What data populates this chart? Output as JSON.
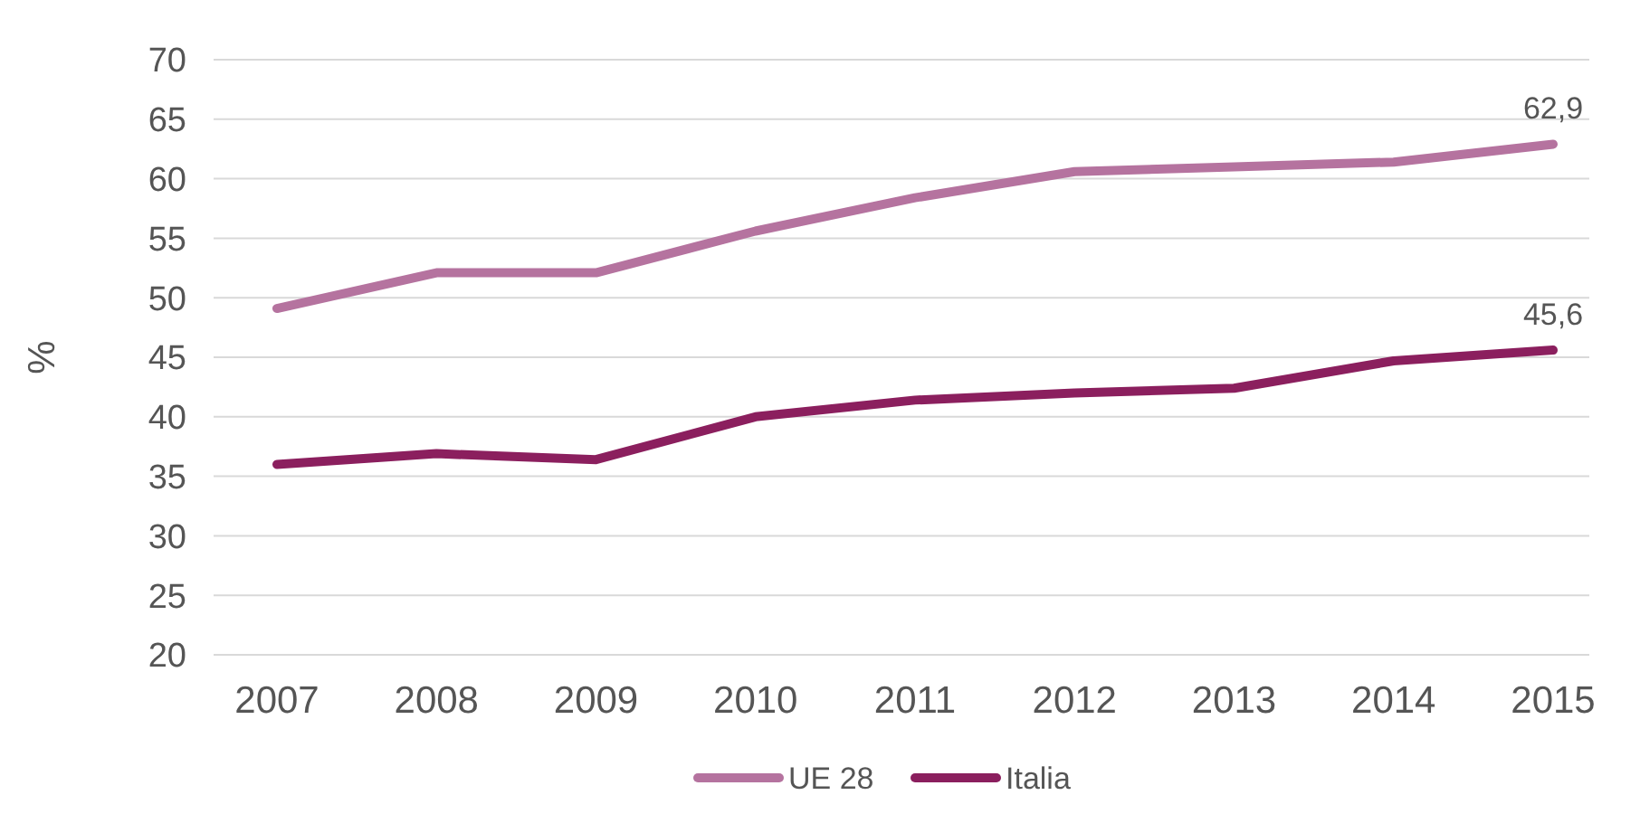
{
  "chart_data": {
    "type": "line",
    "ylabel": "%",
    "categories": [
      "2007",
      "2008",
      "2009",
      "2010",
      "2011",
      "2012",
      "2013",
      "2014",
      "2015"
    ],
    "series": [
      {
        "name": "UE 28",
        "color": "#b5739f",
        "values": [
          49.1,
          52.1,
          52.1,
          55.6,
          58.4,
          60.6,
          61.0,
          61.4,
          62.9
        ],
        "value_labels": [
          null,
          null,
          null,
          null,
          null,
          null,
          null,
          null,
          "62,9"
        ]
      },
      {
        "name": "Italia",
        "color": "#8b1f5e",
        "values": [
          36.0,
          36.9,
          36.4,
          40.0,
          41.4,
          42.0,
          42.4,
          44.7,
          45.6
        ],
        "value_labels": [
          null,
          null,
          null,
          null,
          null,
          null,
          null,
          null,
          "45,6"
        ]
      }
    ],
    "ylim": [
      20,
      70
    ],
    "yticks": [
      20,
      25,
      30,
      35,
      40,
      45,
      50,
      55,
      60,
      65,
      70
    ],
    "grid": "y",
    "legend": "bottom",
    "marker": "none",
    "line_style": "solid"
  }
}
